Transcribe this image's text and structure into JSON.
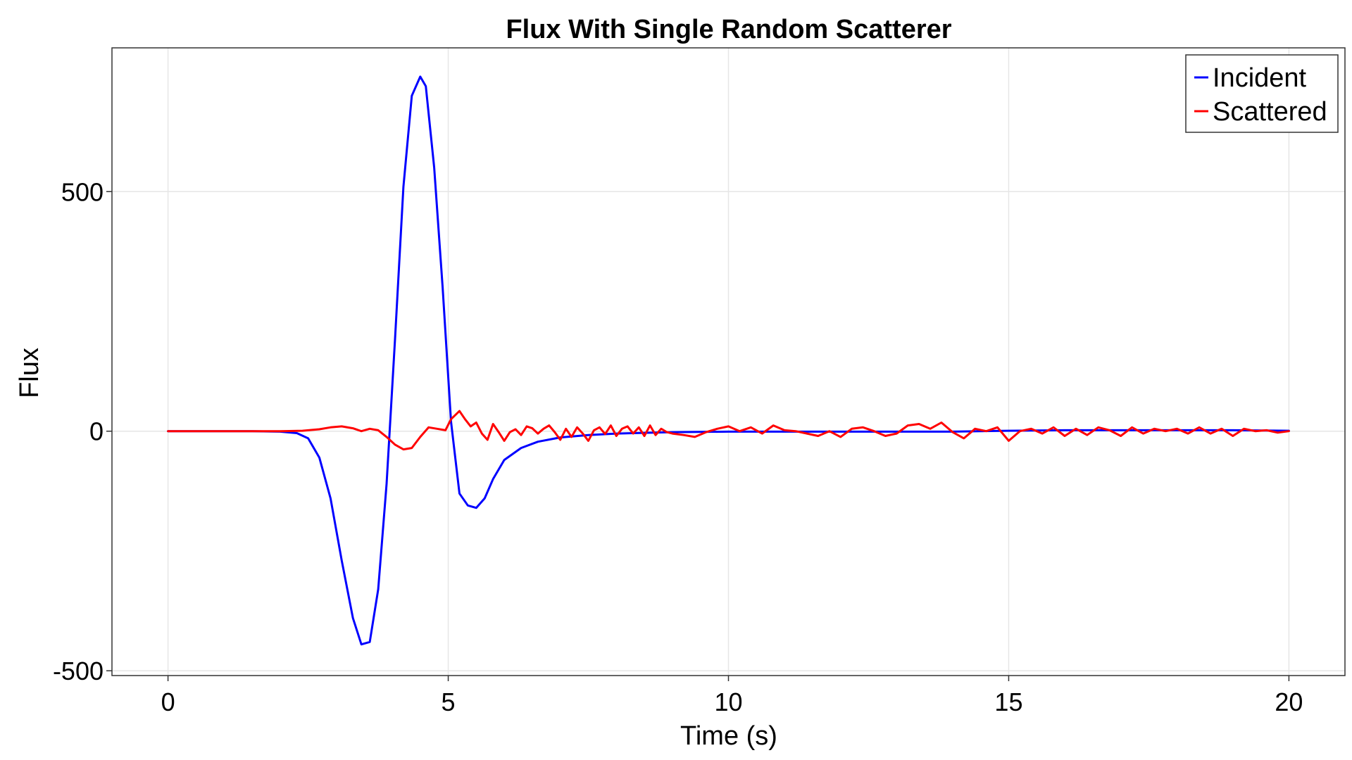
{
  "chart_data": {
    "type": "line",
    "title": "Flux With Single Random Scatterer",
    "xlabel": "Time (s)",
    "ylabel": "Flux",
    "xlim": [
      -1,
      21
    ],
    "ylim": [
      -510,
      800
    ],
    "xticks": [
      0,
      5,
      10,
      15,
      20
    ],
    "xtick_labels": [
      "0",
      "5",
      "10",
      "15",
      "20"
    ],
    "yticks": [
      -500,
      0,
      500
    ],
    "ytick_labels": [
      "-500",
      "0",
      "500"
    ],
    "grid": true,
    "legend_position": "top-right",
    "series": [
      {
        "name": "Incident",
        "color": "#0000ff",
        "x": [
          0,
          0.5,
          1,
          1.5,
          2,
          2.3,
          2.5,
          2.7,
          2.9,
          3.1,
          3.3,
          3.45,
          3.6,
          3.75,
          3.9,
          4.05,
          4.2,
          4.35,
          4.5,
          4.6,
          4.75,
          4.9,
          5.05,
          5.2,
          5.35,
          5.5,
          5.65,
          5.8,
          6.0,
          6.3,
          6.6,
          7.0,
          7.5,
          8.0,
          9.0,
          10,
          11,
          12,
          13,
          14,
          15,
          16,
          17,
          18,
          19,
          20
        ],
        "y": [
          0,
          0,
          0,
          0,
          -1,
          -4,
          -15,
          -55,
          -140,
          -270,
          -390,
          -445,
          -440,
          -330,
          -110,
          190,
          510,
          700,
          740,
          720,
          550,
          300,
          20,
          -130,
          -155,
          -160,
          -140,
          -100,
          -60,
          -35,
          -22,
          -13,
          -8,
          -5,
          -2,
          -1,
          -1,
          -1,
          -1,
          -1,
          1,
          2,
          2,
          2,
          2,
          1
        ]
      },
      {
        "name": "Scattered",
        "color": "#ff0000",
        "x": [
          0,
          0.5,
          1,
          1.5,
          2,
          2.4,
          2.7,
          2.9,
          3.1,
          3.3,
          3.45,
          3.6,
          3.75,
          3.9,
          4.05,
          4.2,
          4.35,
          4.5,
          4.65,
          4.8,
          4.95,
          5.05,
          5.2,
          5.3,
          5.4,
          5.5,
          5.6,
          5.7,
          5.8,
          5.9,
          6.0,
          6.1,
          6.2,
          6.3,
          6.4,
          6.5,
          6.6,
          6.7,
          6.8,
          6.9,
          7.0,
          7.1,
          7.2,
          7.3,
          7.4,
          7.5,
          7.6,
          7.7,
          7.8,
          7.9,
          8.0,
          8.1,
          8.2,
          8.3,
          8.4,
          8.5,
          8.6,
          8.7,
          8.8,
          8.9,
          9.0,
          9.2,
          9.4,
          9.6,
          9.8,
          10.0,
          10.2,
          10.4,
          10.6,
          10.8,
          11.0,
          11.2,
          11.4,
          11.6,
          11.8,
          12.0,
          12.2,
          12.4,
          12.6,
          12.8,
          13.0,
          13.2,
          13.4,
          13.6,
          13.8,
          14.0,
          14.2,
          14.4,
          14.6,
          14.8,
          15.0,
          15.2,
          15.4,
          15.6,
          15.8,
          16.0,
          16.2,
          16.4,
          16.6,
          16.8,
          17.0,
          17.2,
          17.4,
          17.6,
          17.8,
          18.0,
          18.2,
          18.4,
          18.6,
          18.8,
          19.0,
          19.2,
          19.4,
          19.6,
          19.8,
          20.0
        ],
        "y": [
          0,
          0,
          0,
          0,
          0,
          1,
          4,
          8,
          10,
          6,
          0,
          5,
          2,
          -12,
          -28,
          -38,
          -35,
          -12,
          8,
          5,
          2,
          25,
          42,
          25,
          10,
          18,
          -5,
          -18,
          15,
          -2,
          -20,
          -2,
          4,
          -8,
          10,
          6,
          -5,
          5,
          12,
          -2,
          -18,
          5,
          -12,
          8,
          -5,
          -20,
          2,
          8,
          -6,
          12,
          -10,
          5,
          10,
          -5,
          8,
          -10,
          12,
          -8,
          5,
          -2,
          -5,
          -8,
          -12,
          -2,
          5,
          10,
          0,
          8,
          -5,
          12,
          2,
          0,
          -5,
          -10,
          0,
          -12,
          5,
          8,
          0,
          -10,
          -5,
          12,
          15,
          5,
          18,
          -2,
          -15,
          5,
          0,
          8,
          -20,
          0,
          5,
          -5,
          8,
          -10,
          5,
          -8,
          8,
          2,
          -10,
          8,
          -5,
          5,
          0,
          5,
          -5,
          8,
          -5,
          5,
          -10,
          5,
          0,
          2,
          -3,
          0
        ]
      }
    ]
  }
}
